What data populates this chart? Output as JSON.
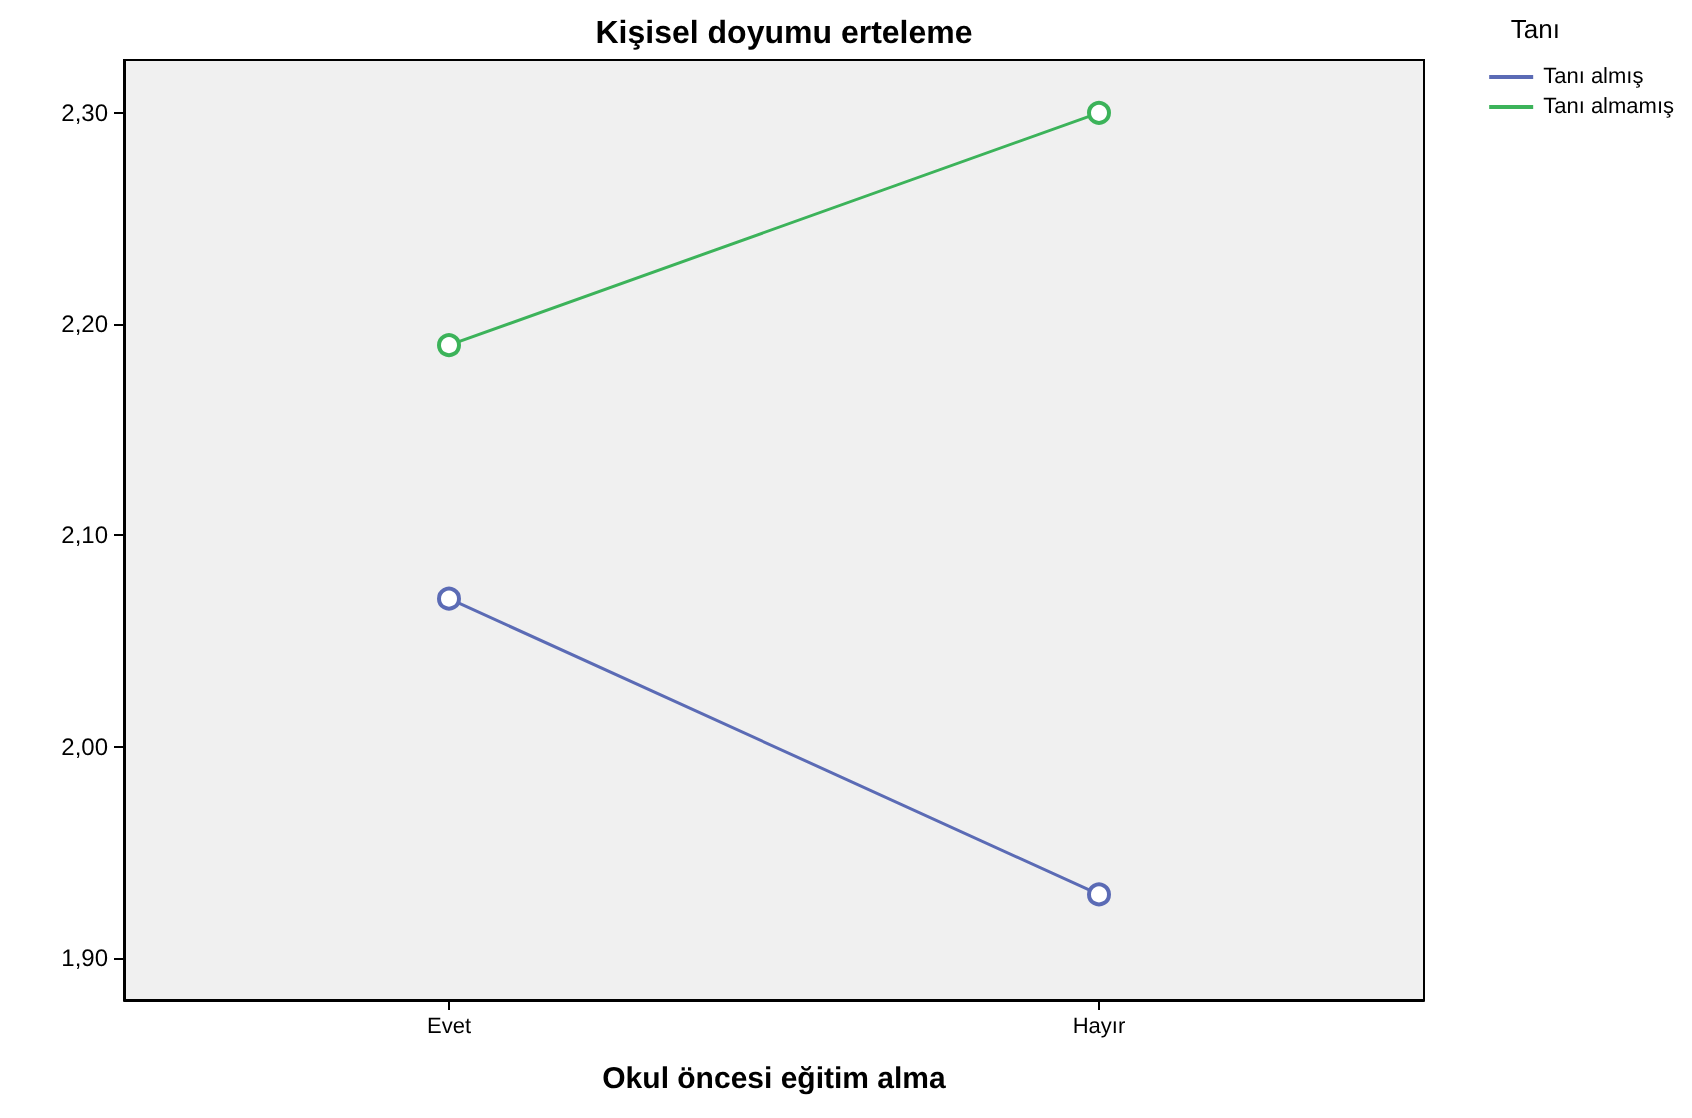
{
  "chart_data": {
    "type": "line",
    "title": "Kişisel doyumu erteleme",
    "xlabel": "Okul öncesi eğitim alma",
    "legend_title": "Tanı",
    "categories": [
      "Evet",
      "Hayır"
    ],
    "series": [
      {
        "name": "Tanı almış",
        "color": "#5b6bb5",
        "values": [
          2.07,
          1.93
        ]
      },
      {
        "name": "Tanı almamış",
        "color": "#3cb35a",
        "values": [
          2.19,
          2.3
        ]
      }
    ],
    "ylim": [
      1.88,
      2.325
    ],
    "yticks": [
      {
        "value": 1.9,
        "label": "1,90"
      },
      {
        "value": 2.0,
        "label": "2,00"
      },
      {
        "value": 2.1,
        "label": "2,10"
      },
      {
        "value": 2.2,
        "label": "2,20"
      },
      {
        "value": 2.3,
        "label": "2,30"
      }
    ],
    "grid": false,
    "legend": "top right",
    "marker": "circle",
    "line_style": "solid"
  }
}
